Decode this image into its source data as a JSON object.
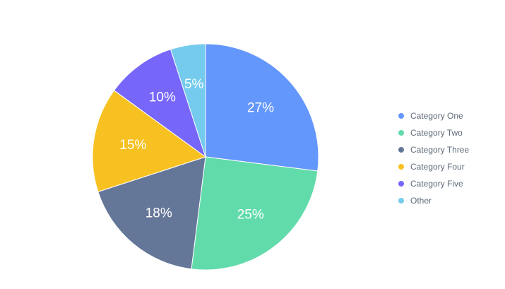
{
  "chart_data": {
    "type": "pie",
    "categories": [
      "Category One",
      "Category Two",
      "Category Three",
      "Category Four",
      "Category Five",
      "Other"
    ],
    "values": [
      27,
      25,
      18,
      15,
      10,
      5
    ],
    "data_labels": [
      "27%",
      "25%",
      "18%",
      "15%",
      "10%",
      "5%"
    ],
    "colors": [
      "#6497fb",
      "#62dbab",
      "#657798",
      "#f7c122",
      "#7666f9",
      "#74cbed"
    ],
    "title": "",
    "legend_position": "right"
  },
  "legend": {
    "items": [
      {
        "label": "Category One",
        "color": "#6497fb"
      },
      {
        "label": "Category Two",
        "color": "#62dbab"
      },
      {
        "label": "Category Three",
        "color": "#657798"
      },
      {
        "label": "Category Four",
        "color": "#f7c122"
      },
      {
        "label": "Category Five",
        "color": "#7666f9"
      },
      {
        "label": "Other",
        "color": "#74cbed"
      }
    ]
  }
}
